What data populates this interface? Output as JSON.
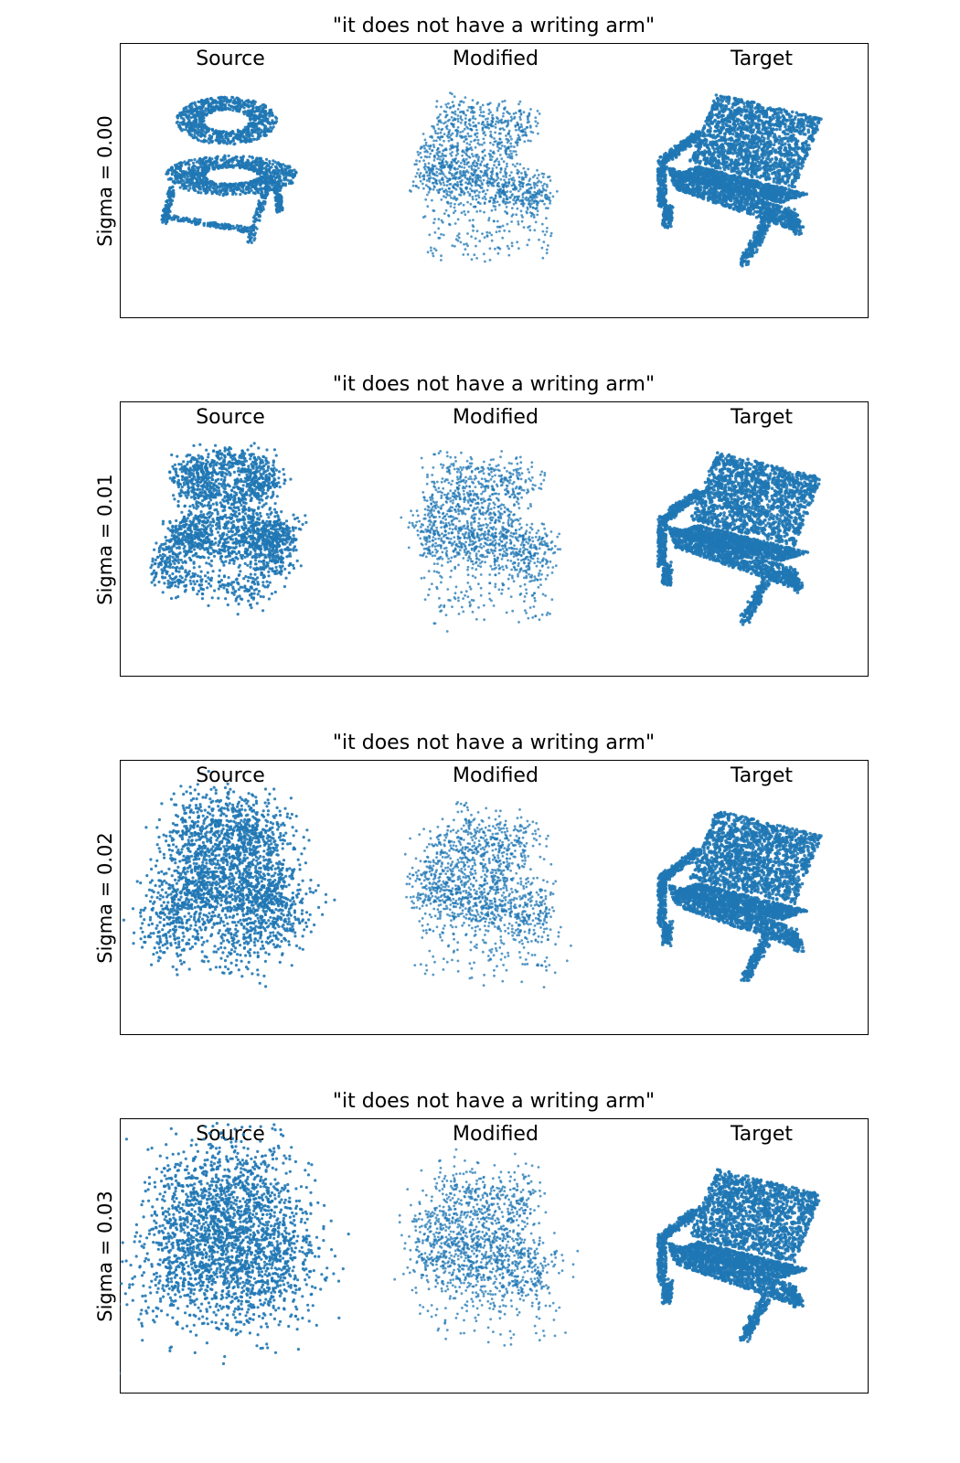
{
  "figure": {
    "point_color": "#1f77b4",
    "panels": [
      {
        "title": "\"it does not have a writing arm\"",
        "row_label": "Sigma = 0.00",
        "sigma": 0.0,
        "columns": [
          "Source",
          "Modified",
          "Target"
        ]
      },
      {
        "title": "\"it does not have a writing arm\"",
        "row_label": "Sigma = 0.01",
        "sigma": 0.01,
        "columns": [
          "Source",
          "Modified",
          "Target"
        ]
      },
      {
        "title": "\"it does not have a writing arm\"",
        "row_label": "Sigma = 0.02",
        "sigma": 0.02,
        "columns": [
          "Source",
          "Modified",
          "Target"
        ]
      },
      {
        "title": "\"it does not have a writing arm\"",
        "row_label": "Sigma = 0.03",
        "sigma": 0.03,
        "columns": [
          "Source",
          "Modified",
          "Target"
        ]
      }
    ]
  }
}
